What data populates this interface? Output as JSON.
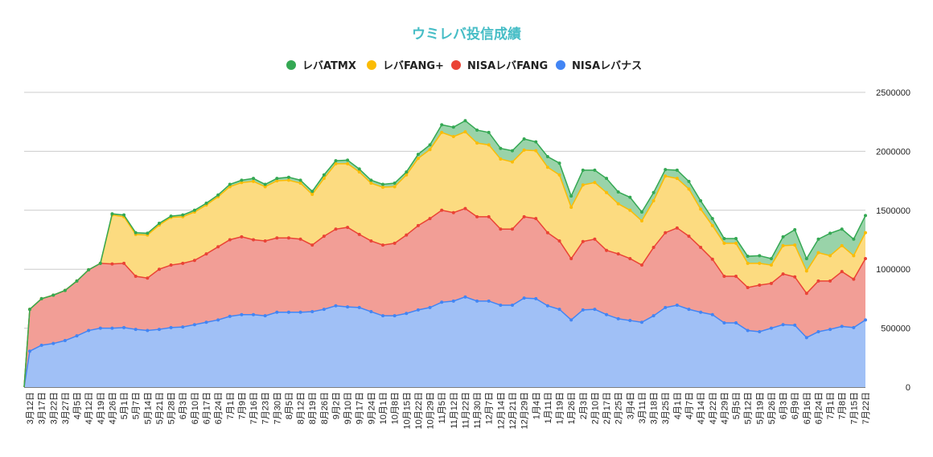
{
  "chart_data": {
    "type": "area",
    "stacked": true,
    "title": "ウミレバ投信成績",
    "title_color": "#46bdc6",
    "xlabel": "",
    "ylabel": "",
    "ylim": [
      0,
      2500000
    ],
    "yticks": [
      "0",
      "500000",
      "1000000",
      "1500000",
      "2000000",
      "2500000"
    ],
    "grid": true,
    "legend_position": "top",
    "categories": [
      "3月12日",
      "3月17日",
      "3月22日",
      "3月27日",
      "4月5日",
      "4月12日",
      "4月19日",
      "4月26日",
      "5月1日",
      "5月7日",
      "5月14日",
      "5月21日",
      "5月28日",
      "6月3日",
      "6月10日",
      "6月17日",
      "6月24日",
      "7月1日",
      "7月9日",
      "7月16日",
      "7月23日",
      "7月30日",
      "8月5日",
      "8月12日",
      "8月19日",
      "8月26日",
      "9月2日",
      "9月10日",
      "9月17日",
      "9月24日",
      "10月1日",
      "10月8日",
      "10月15日",
      "10月22日",
      "10月29日",
      "11月5日",
      "11月12日",
      "11月22日",
      "11月30日",
      "12月7日",
      "12月14日",
      "12月21日",
      "12月29日",
      "1月4日",
      "1月11日",
      "1月19日",
      "1月26日",
      "2月3日",
      "2月10日",
      "2月17日",
      "2月25日",
      "3月4日",
      "3月11日",
      "3月18日",
      "3月25日",
      "4月1日",
      "4月7日",
      "4月14日",
      "4月22日",
      "4月29日",
      "5月5日",
      "5月12日",
      "5月19日",
      "5月26日",
      "6月3日",
      "6月9日",
      "6月16日",
      "6月24日",
      "7月1日",
      "7月8日",
      "7月15日",
      "7月22日"
    ],
    "series": [
      {
        "name": "NISAレバナス",
        "color": "#4285f4",
        "fill": "#a0c0f6",
        "values": [
          305000,
          355000,
          370000,
          395000,
          435000,
          480000,
          500000,
          500000,
          505000,
          490000,
          480000,
          490000,
          505000,
          510000,
          530000,
          550000,
          570000,
          600000,
          615000,
          615000,
          605000,
          635000,
          635000,
          635000,
          640000,
          660000,
          690000,
          680000,
          675000,
          640000,
          605000,
          605000,
          625000,
          655000,
          675000,
          720000,
          730000,
          765000,
          730000,
          730000,
          695000,
          695000,
          755000,
          750000,
          690000,
          660000,
          570000,
          655000,
          660000,
          615000,
          580000,
          565000,
          550000,
          605000,
          675000,
          695000,
          660000,
          635000,
          615000,
          545000,
          545000,
          480000,
          470000,
          500000,
          530000,
          525000,
          420000,
          470000,
          490000,
          515000,
          505000,
          570000
        ]
      },
      {
        "name": "NISAレバFANG",
        "color": "#ea4335",
        "fill": "#f29e96",
        "values": [
          355000,
          395000,
          410000,
          425000,
          465000,
          515000,
          550000,
          545000,
          545000,
          450000,
          445000,
          510000,
          530000,
          540000,
          545000,
          580000,
          620000,
          650000,
          660000,
          635000,
          635000,
          630000,
          630000,
          620000,
          565000,
          620000,
          650000,
          675000,
          620000,
          600000,
          600000,
          615000,
          665000,
          715000,
          755000,
          780000,
          750000,
          750000,
          715000,
          715000,
          645000,
          645000,
          690000,
          680000,
          620000,
          580000,
          520000,
          580000,
          595000,
          545000,
          550000,
          525000,
          485000,
          580000,
          635000,
          655000,
          620000,
          550000,
          470000,
          395000,
          395000,
          365000,
          395000,
          380000,
          430000,
          410000,
          375000,
          430000,
          410000,
          465000,
          410000,
          520000
        ]
      },
      {
        "name": "レバFANG+",
        "color": "#fbbc04",
        "fill": "#fcdb80",
        "values": [
          0,
          0,
          0,
          0,
          0,
          0,
          0,
          415000,
          395000,
          355000,
          365000,
          375000,
          405000,
          395000,
          410000,
          415000,
          425000,
          450000,
          460000,
          495000,
          460000,
          485000,
          490000,
          475000,
          430000,
          490000,
          555000,
          540000,
          530000,
          490000,
          490000,
          480000,
          510000,
          570000,
          585000,
          660000,
          645000,
          650000,
          625000,
          610000,
          595000,
          570000,
          565000,
          575000,
          555000,
          560000,
          435000,
          480000,
          480000,
          490000,
          425000,
          410000,
          375000,
          395000,
          480000,
          420000,
          400000,
          325000,
          285000,
          280000,
          280000,
          205000,
          185000,
          155000,
          240000,
          270000,
          190000,
          240000,
          215000,
          220000,
          200000,
          220000
        ]
      },
      {
        "name": "レバATMX",
        "color": "#34a853",
        "fill": "#99d3a9",
        "values": [
          0,
          0,
          0,
          0,
          0,
          0,
          0,
          10000,
          15000,
          15000,
          15000,
          15000,
          10000,
          15000,
          15000,
          15000,
          15000,
          20000,
          20000,
          25000,
          20000,
          20000,
          25000,
          25000,
          25000,
          30000,
          25000,
          30000,
          25000,
          25000,
          25000,
          30000,
          25000,
          35000,
          40000,
          65000,
          80000,
          95000,
          110000,
          105000,
          90000,
          95000,
          95000,
          75000,
          90000,
          100000,
          95000,
          125000,
          105000,
          120000,
          100000,
          110000,
          75000,
          70000,
          55000,
          70000,
          65000,
          70000,
          60000,
          40000,
          40000,
          60000,
          65000,
          55000,
          75000,
          130000,
          105000,
          115000,
          190000,
          140000,
          140000,
          145000
        ]
      }
    ],
    "legend_order": [
      "レバATMX",
      "レバFANG+",
      "NISAレバFANG",
      "NISAレバナス"
    ]
  }
}
